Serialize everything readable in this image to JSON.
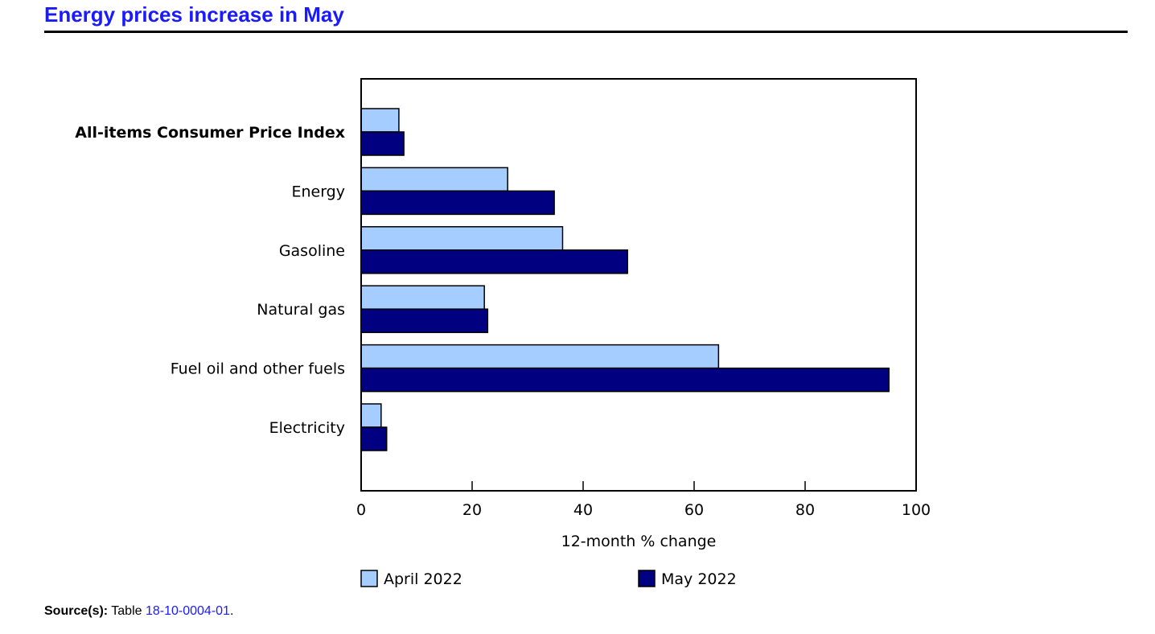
{
  "colors": {
    "title": "#1a1aff",
    "link": "#1a1aff",
    "april": "#a6cdff",
    "may": "#000080",
    "stroke": "#000000"
  },
  "chart_data": {
    "type": "bar",
    "orientation": "horizontal",
    "title": "Energy prices increase in May",
    "categories": [
      "All-items Consumer Price Index",
      "Energy",
      "Gasoline",
      "Natural gas",
      "Fuel oil and other fuels",
      "Electricity"
    ],
    "bold_categories": [
      "All-items Consumer Price Index"
    ],
    "series": [
      {
        "name": "April 2022",
        "color": "#a6cdff",
        "values": [
          6.8,
          26.4,
          36.3,
          22.2,
          64.4,
          3.6
        ]
      },
      {
        "name": "May 2022",
        "color": "#000080",
        "values": [
          7.7,
          34.8,
          48.0,
          22.8,
          95.1,
          4.6
        ]
      }
    ],
    "xlabel": "12-month % change",
    "xlim": [
      0,
      100
    ],
    "xticks": [
      "0",
      "20",
      "40",
      "60",
      "80",
      "100"
    ],
    "grid": false,
    "legend_position": "bottom"
  },
  "source": {
    "label": "Source(s):",
    "text_before": "Table",
    "link_text": "18-10-0004-01",
    "text_after": "."
  }
}
